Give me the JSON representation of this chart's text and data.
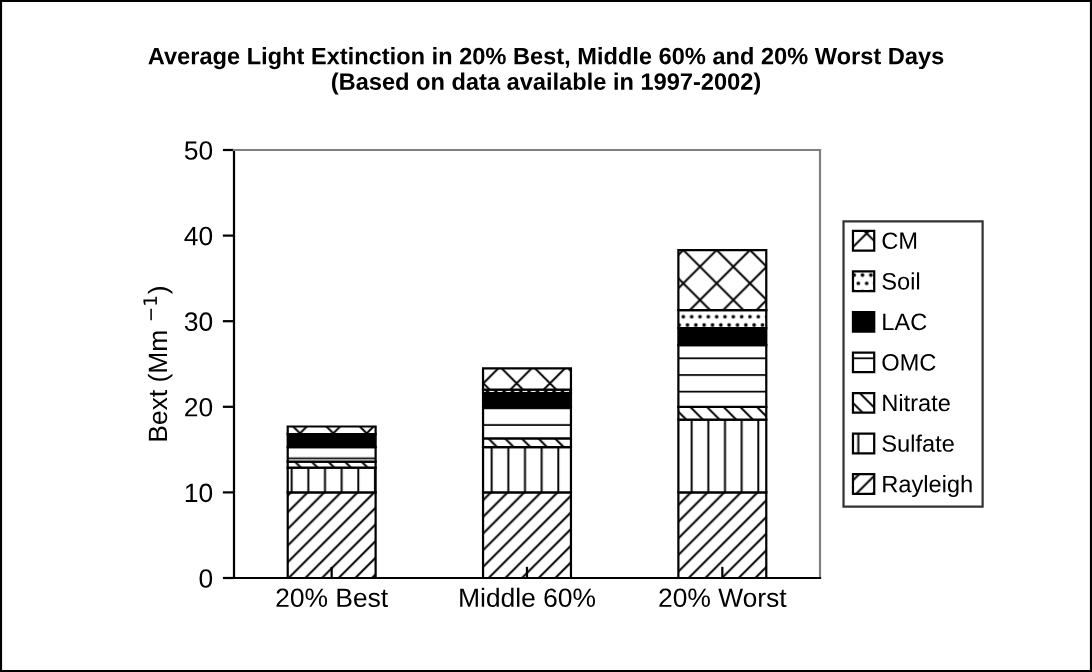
{
  "chart_data": {
    "type": "bar",
    "stacked": true,
    "title": "Average Light Extinction in 20% Best, Middle 60% and 20% Worst Days\n(Based on data available in 1997-2002)",
    "ylabel": "Bext (Mm $^{−1}$)",
    "categories": [
      "20% Best",
      "Middle 60%",
      "20% Worst"
    ],
    "series": [
      {
        "name": "Rayleigh",
        "color": "#000000",
        "values": [
          10.0,
          10.0,
          10.0
        ]
      },
      {
        "name": "Sulfate",
        "color": "#000000",
        "values": [
          2.9,
          5.3,
          8.5
        ]
      },
      {
        "name": "Nitrate",
        "color": "#000000",
        "values": [
          0.7,
          1.0,
          1.5
        ]
      },
      {
        "name": "OMC",
        "color": "#000000",
        "values": [
          1.7,
          3.7,
          7.2
        ]
      },
      {
        "name": "LAC",
        "color": "#000000",
        "values": [
          1.5,
          1.6,
          2.0
        ]
      },
      {
        "name": "Soil",
        "color": "#000000",
        "values": [
          null,
          0.4,
          2.1
        ]
      },
      {
        "name": "CM",
        "color": "#000000",
        "values": [
          0.9,
          2.5,
          7.0
        ]
      }
    ],
    "ylim": [
      0,
      50
    ],
    "yticks": [
      0,
      10,
      20,
      30,
      40,
      50
    ],
    "grid": false,
    "legend": "right"
  }
}
